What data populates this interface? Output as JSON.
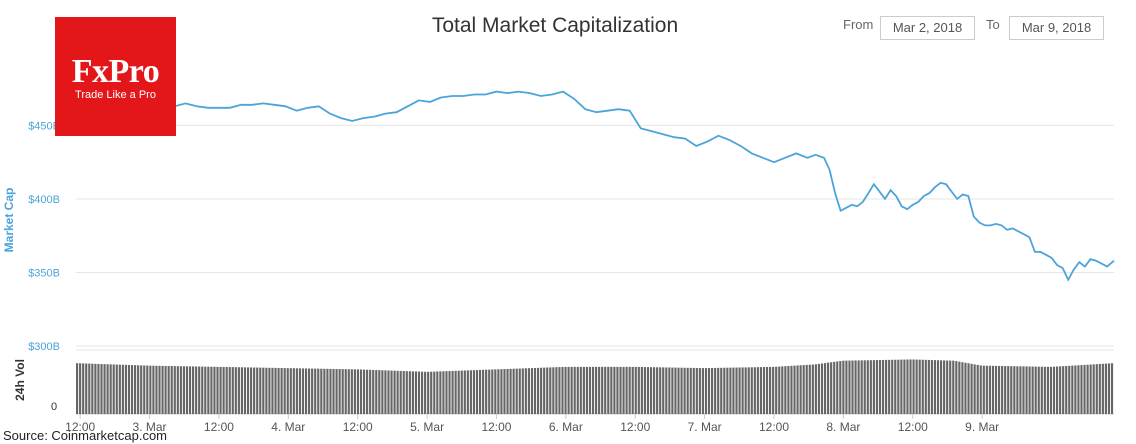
{
  "header": {
    "from_label": "From",
    "from_value": "Mar 2, 2018",
    "to_label": "To",
    "to_value": "Mar 9, 2018"
  },
  "logo": {
    "word": "FxPro",
    "tagline": "Trade Like a Pro",
    "color": "#e3161a"
  },
  "source_text": "Source: Coinmarketcap.com",
  "chart_data": {
    "type": "line",
    "title": "Total Market Capitalization",
    "ylabel": "Market Cap",
    "volume_label": "24h Vol",
    "volume_zero_label": "0",
    "ylim": [
      300,
      470
    ],
    "yticks": [
      {
        "value": 300,
        "label": "$300B"
      },
      {
        "value": 350,
        "label": "$350B"
      },
      {
        "value": 400,
        "label": "$400B"
      },
      {
        "value": 450,
        "label": "$450B"
      }
    ],
    "x_range": [
      0.47,
      7.95
    ],
    "xticks": [
      {
        "x": 0.5,
        "label": "12:00"
      },
      {
        "x": 1.0,
        "label": "3. Mar"
      },
      {
        "x": 1.5,
        "label": "12:00"
      },
      {
        "x": 2.0,
        "label": "4. Mar"
      },
      {
        "x": 2.5,
        "label": "12:00"
      },
      {
        "x": 3.0,
        "label": "5. Mar"
      },
      {
        "x": 3.5,
        "label": "12:00"
      },
      {
        "x": 4.0,
        "label": "6. Mar"
      },
      {
        "x": 4.5,
        "label": "12:00"
      },
      {
        "x": 5.0,
        "label": "7. Mar"
      },
      {
        "x": 5.5,
        "label": "12:00"
      },
      {
        "x": 6.0,
        "label": "8. Mar"
      },
      {
        "x": 6.5,
        "label": "12:00"
      },
      {
        "x": 7.0,
        "label": "9. Mar"
      }
    ],
    "line_color": "#4ba4d9",
    "volume_color": "#666666",
    "series": [
      {
        "x": [
          0.47,
          0.55,
          0.62,
          0.7,
          0.78,
          0.86,
          0.94,
          1.02,
          1.1,
          1.18,
          1.26,
          1.34,
          1.42,
          1.5,
          1.58,
          1.66,
          1.74,
          1.82,
          1.9,
          1.98,
          2.06,
          2.14,
          2.22,
          2.3,
          2.38,
          2.46,
          2.54,
          2.62,
          2.7,
          2.78,
          2.86,
          2.94,
          3.02,
          3.1,
          3.18,
          3.26,
          3.34,
          3.42,
          3.5,
          3.58,
          3.66,
          3.74,
          3.82,
          3.9,
          3.98,
          4.06,
          4.14,
          4.22,
          4.3,
          4.38,
          4.46,
          4.54,
          4.62,
          4.7,
          4.78,
          4.86,
          4.94,
          5.02,
          5.1,
          5.18,
          5.26,
          5.34,
          5.42,
          5.5,
          5.58,
          5.66,
          5.74,
          5.8,
          5.86,
          5.9,
          5.94,
          5.98,
          6.02,
          6.06,
          6.1,
          6.14,
          6.18,
          6.22,
          6.26,
          6.3,
          6.34,
          6.38,
          6.42,
          6.46,
          6.5,
          6.54,
          6.58,
          6.62,
          6.66,
          6.7,
          6.74,
          6.78,
          6.82,
          6.86,
          6.9,
          6.94,
          6.98,
          7.02,
          7.06,
          7.1,
          7.14,
          7.18,
          7.22,
          7.26,
          7.3,
          7.34,
          7.38,
          7.42,
          7.46,
          7.5,
          7.54,
          7.58,
          7.62,
          7.66,
          7.7,
          7.74,
          7.78,
          7.82,
          7.86,
          7.9,
          7.95
        ],
        "values": [
          460,
          458,
          453,
          455,
          451,
          454,
          453,
          457,
          458,
          463,
          465,
          463,
          462,
          462,
          462,
          464,
          464,
          465,
          464,
          463,
          460,
          462,
          463,
          458,
          455,
          453,
          455,
          456,
          458,
          459,
          463,
          467,
          466,
          469,
          470,
          470,
          471,
          471,
          473,
          472,
          473,
          472,
          470,
          471,
          473,
          468,
          461,
          459,
          460,
          461,
          460,
          448,
          446,
          444,
          442,
          441,
          436,
          439,
          443,
          440,
          436,
          431,
          428,
          425,
          428,
          431,
          428,
          430,
          428,
          420,
          404,
          392,
          394,
          396,
          395,
          398,
          404,
          410,
          405,
          400,
          406,
          402,
          395,
          393,
          396,
          398,
          402,
          404,
          408,
          411,
          410,
          405,
          400,
          403,
          402,
          388,
          384,
          382,
          382,
          383,
          382,
          379,
          380,
          378,
          376,
          374,
          364,
          364,
          362,
          360,
          355,
          353,
          345,
          352,
          357,
          354,
          359,
          358,
          356,
          354,
          358
        ]
      }
    ],
    "volume": {
      "x": [
        0.47,
        1.0,
        1.5,
        2.0,
        2.5,
        3.0,
        3.5,
        4.0,
        4.5,
        5.0,
        5.5,
        5.8,
        6.0,
        6.5,
        6.8,
        7.0,
        7.5,
        7.95
      ],
      "values": [
        0.82,
        0.78,
        0.76,
        0.74,
        0.72,
        0.68,
        0.72,
        0.76,
        0.76,
        0.74,
        0.76,
        0.8,
        0.86,
        0.88,
        0.86,
        0.78,
        0.76,
        0.82
      ]
    }
  }
}
